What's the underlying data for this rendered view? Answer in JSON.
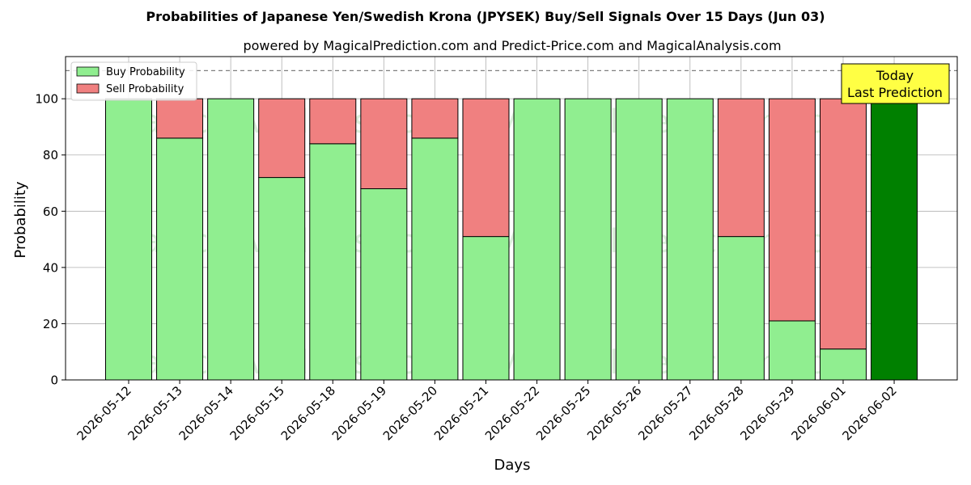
{
  "chart_data": {
    "type": "bar",
    "stacked": true,
    "title": "Probabilities of Japanese Yen/Swedish Krona (JPYSEK) Buy/Sell Signals Over 15 Days (Jun 03)",
    "subtitle": "powered by MagicalPrediction.com and Predict-Price.com and MagicalAnalysis.com",
    "xlabel": "Days",
    "ylabel": "Probability",
    "ylim": [
      0,
      115
    ],
    "yticks": [
      0,
      20,
      40,
      60,
      80,
      100
    ],
    "reference_line": 110,
    "grid": true,
    "legend_position": "top-left",
    "categories": [
      "2026-05-12",
      "2026-05-13",
      "2026-05-14",
      "2026-05-15",
      "2026-05-18",
      "2026-05-19",
      "2026-05-20",
      "2026-05-21",
      "2026-05-22",
      "2026-05-25",
      "2026-05-26",
      "2026-05-27",
      "2026-05-28",
      "2026-05-29",
      "2026-06-01",
      "2026-06-02"
    ],
    "series": [
      {
        "name": "Buy Probability",
        "color": "#90ee90",
        "values": [
          100,
          86,
          100,
          72,
          84,
          68,
          86,
          51,
          100,
          100,
          100,
          100,
          51,
          21,
          11,
          100
        ]
      },
      {
        "name": "Sell Probability",
        "color": "#f08080",
        "values": [
          0,
          14,
          0,
          28,
          16,
          32,
          14,
          49,
          0,
          0,
          0,
          0,
          49,
          79,
          89,
          0
        ]
      }
    ],
    "highlight": {
      "index": 15,
      "color": "#008000"
    },
    "annotation": {
      "line1": "Today",
      "line2": "Last Prediction",
      "bg": "#ffff44"
    },
    "watermarks": [
      "MagicalAnalysis.com",
      "MagicalPrediction.com"
    ]
  }
}
